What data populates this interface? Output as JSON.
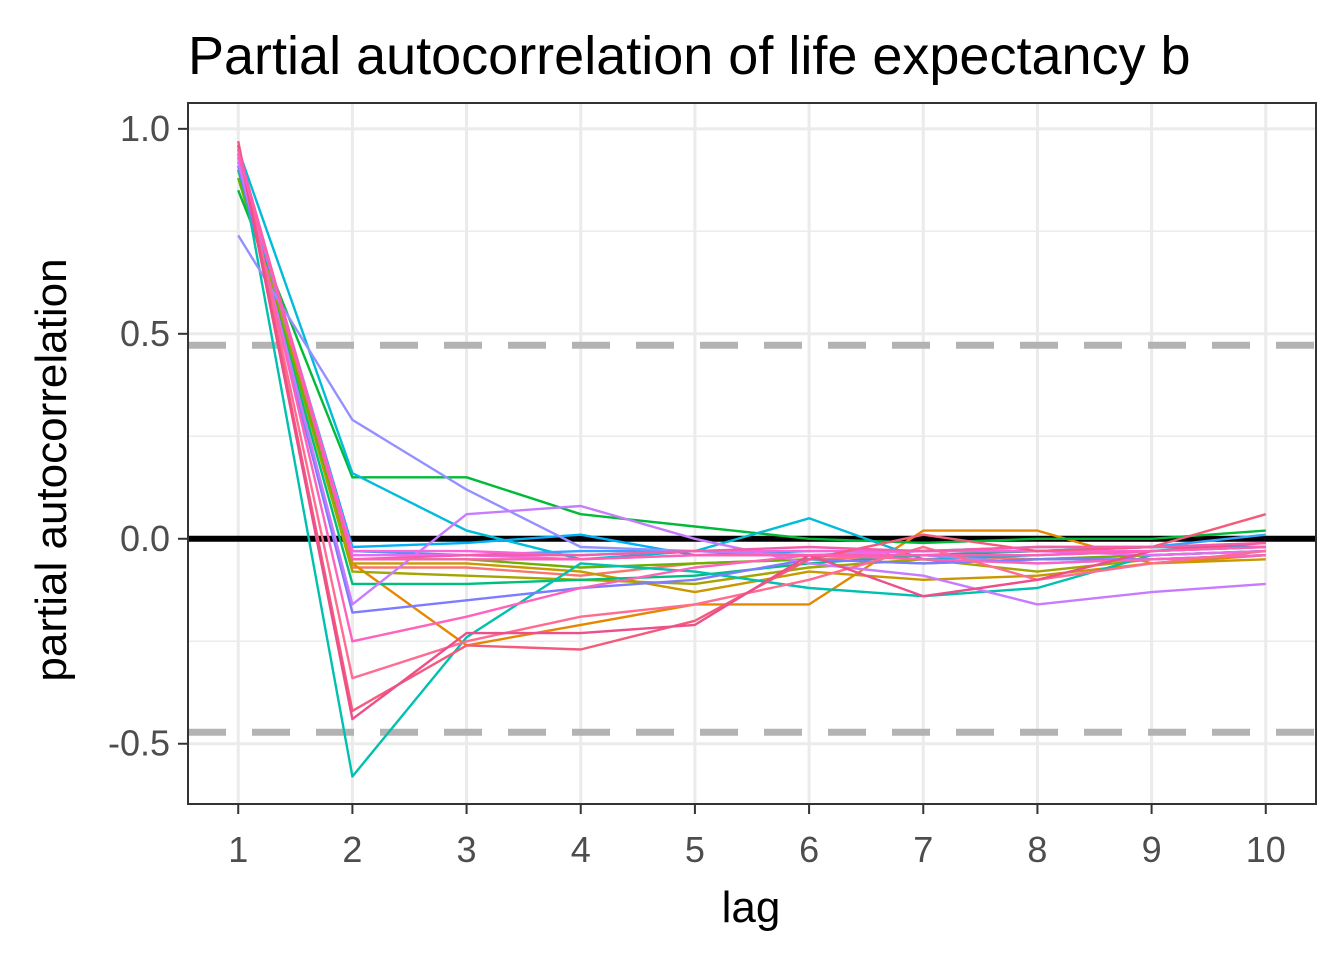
{
  "chart_data": {
    "type": "line",
    "title": "Partial autocorrelation of life expectancy b",
    "xlabel": "lag",
    "ylabel": "partial autocorrelation",
    "x": [
      1,
      2,
      3,
      4,
      5,
      6,
      7,
      8,
      9,
      10
    ],
    "x_tick_labels": [
      "1",
      "2",
      "3",
      "4",
      "5",
      "6",
      "7",
      "8",
      "9",
      "10"
    ],
    "y_ticks": [
      -0.5,
      0.0,
      0.5,
      1.0
    ],
    "y_tick_labels": [
      "-0.5",
      "0.0",
      "0.5",
      "1.0"
    ],
    "xlim": [
      0.56,
      10.44
    ],
    "ylim": [
      -0.647,
      1.063
    ],
    "grid": true,
    "legend": "none",
    "reference_lines": [
      {
        "value": 0.0,
        "style": "solid",
        "color": "#000000"
      },
      {
        "value": 0.472,
        "style": "dashed",
        "color": "#b3b3b3"
      },
      {
        "value": -0.472,
        "style": "dashed",
        "color": "#b3b3b3"
      }
    ],
    "series": [
      {
        "color": "#F8766D",
        "values": [
          0.93,
          -0.07,
          -0.07,
          -0.09,
          -0.06,
          -0.05,
          -0.04,
          -0.05,
          -0.04,
          -0.03
        ]
      },
      {
        "color": "#E58700",
        "values": [
          0.92,
          -0.06,
          -0.26,
          -0.21,
          -0.16,
          -0.16,
          0.02,
          0.02,
          -0.06,
          -0.04
        ]
      },
      {
        "color": "#C99800",
        "values": [
          0.9,
          -0.06,
          -0.06,
          -0.08,
          -0.13,
          -0.08,
          -0.1,
          -0.09,
          -0.06,
          -0.05
        ]
      },
      {
        "color": "#A3A500",
        "values": [
          0.91,
          -0.08,
          -0.09,
          -0.1,
          -0.11,
          -0.07,
          -0.05,
          -0.08,
          -0.05,
          -0.04
        ]
      },
      {
        "color": "#6BB100",
        "values": [
          0.88,
          -0.05,
          -0.05,
          -0.07,
          -0.06,
          -0.05,
          -0.06,
          -0.05,
          -0.04,
          -0.03
        ]
      },
      {
        "color": "#00BA38",
        "values": [
          0.85,
          0.15,
          0.15,
          0.06,
          0.03,
          0.0,
          -0.01,
          0.0,
          0.0,
          0.02
        ]
      },
      {
        "color": "#00BF7D",
        "values": [
          0.9,
          -0.11,
          -0.11,
          -0.1,
          -0.09,
          -0.06,
          -0.04,
          -0.03,
          -0.02,
          -0.02
        ]
      },
      {
        "color": "#00C0AF",
        "values": [
          0.94,
          -0.58,
          -0.24,
          -0.06,
          -0.08,
          -0.12,
          -0.14,
          -0.12,
          -0.04,
          -0.03
        ]
      },
      {
        "color": "#00BCD8",
        "values": [
          0.95,
          0.16,
          0.02,
          -0.05,
          -0.03,
          0.05,
          -0.05,
          -0.04,
          -0.03,
          -0.02
        ]
      },
      {
        "color": "#00B0F6",
        "values": [
          0.93,
          -0.02,
          -0.01,
          0.01,
          -0.04,
          -0.03,
          -0.03,
          -0.02,
          -0.02,
          -0.02
        ]
      },
      {
        "color": "#35A2FF",
        "values": [
          0.92,
          -0.03,
          -0.04,
          -0.03,
          -0.03,
          -0.04,
          -0.03,
          -0.03,
          -0.02,
          0.01
        ]
      },
      {
        "color": "#9590FF",
        "values": [
          0.74,
          0.29,
          0.12,
          -0.02,
          -0.03,
          -0.04,
          -0.04,
          -0.06,
          -0.05,
          -0.04
        ]
      },
      {
        "color": "#7B7CFF",
        "values": [
          0.91,
          -0.18,
          -0.15,
          -0.12,
          -0.1,
          -0.05,
          -0.06,
          -0.05,
          -0.05,
          -0.04
        ]
      },
      {
        "color": "#C77CFF",
        "values": [
          0.92,
          -0.16,
          0.06,
          0.08,
          0.0,
          -0.06,
          -0.09,
          -0.16,
          -0.13,
          -0.11
        ]
      },
      {
        "color": "#E76BF3",
        "values": [
          0.93,
          -0.04,
          -0.04,
          -0.05,
          -0.04,
          -0.04,
          -0.03,
          -0.03,
          -0.04,
          -0.03
        ]
      },
      {
        "color": "#FA62DB",
        "values": [
          0.94,
          -0.03,
          -0.03,
          -0.04,
          -0.03,
          -0.03,
          -0.03,
          -0.03,
          -0.03,
          -0.02
        ]
      },
      {
        "color": "#FF62BC",
        "values": [
          0.95,
          -0.25,
          -0.19,
          -0.12,
          -0.07,
          -0.04,
          -0.05,
          -0.06,
          -0.05,
          -0.04
        ]
      },
      {
        "color": "#FF6C91",
        "values": [
          0.96,
          -0.34,
          -0.25,
          -0.19,
          -0.16,
          -0.1,
          -0.02,
          -0.1,
          -0.06,
          -0.03
        ]
      },
      {
        "color": "#F45B7A",
        "values": [
          0.97,
          -0.42,
          -0.26,
          -0.27,
          -0.2,
          -0.05,
          0.01,
          -0.03,
          -0.02,
          0.06
        ]
      },
      {
        "color": "#EC4F8A",
        "values": [
          0.96,
          -0.44,
          -0.23,
          -0.23,
          -0.21,
          -0.04,
          -0.14,
          -0.1,
          -0.03,
          -0.01
        ]
      },
      {
        "color": "#F25FA8",
        "values": [
          0.95,
          -0.05,
          -0.04,
          -0.04,
          -0.03,
          -0.02,
          -0.03,
          -0.02,
          -0.02,
          -0.01
        ]
      },
      {
        "color": "#FF5FB0",
        "values": [
          0.94,
          -0.05,
          -0.05,
          -0.05,
          -0.04,
          -0.04,
          -0.04,
          -0.04,
          -0.03,
          -0.02
        ]
      }
    ]
  }
}
